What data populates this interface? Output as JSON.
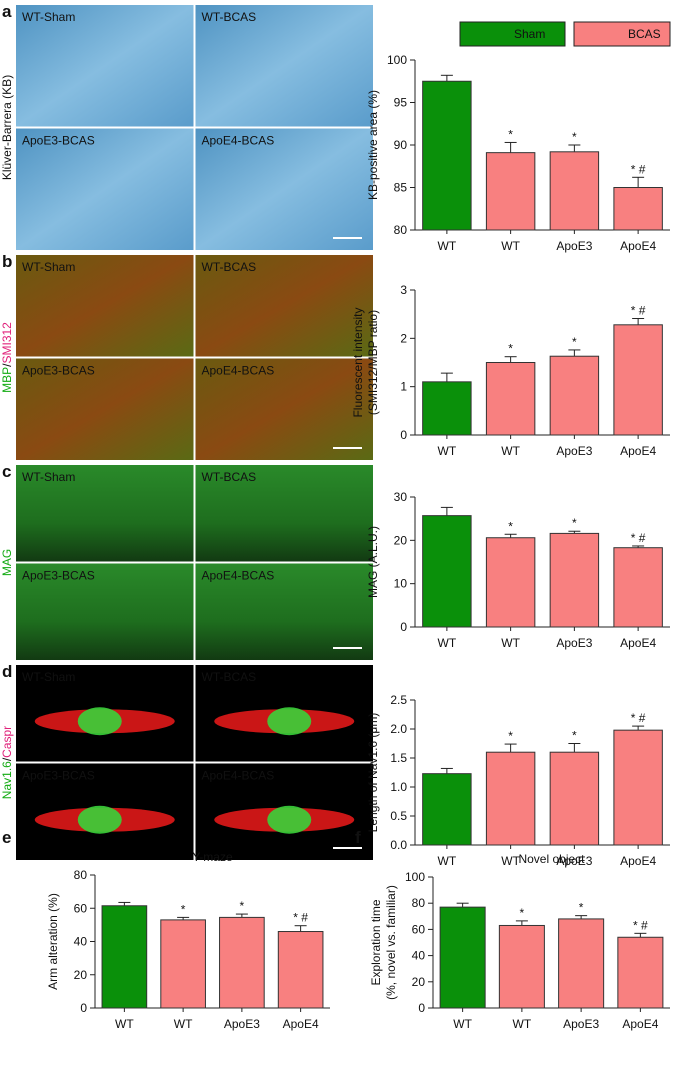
{
  "legend": [
    {
      "name": "Sham",
      "color": "#0a900a"
    },
    {
      "name": "BCAS",
      "color": "#f88080"
    }
  ],
  "panels": [
    {
      "label": "a",
      "stain": [
        "Klüver-Barrera (KB)"
      ],
      "stain_colors": [
        "#111111"
      ],
      "images": [
        "WT-Sham",
        "WT-BCAS",
        "ApoE3-BCAS",
        "ApoE4-BCAS"
      ]
    },
    {
      "label": "b",
      "stain": [
        "MBP",
        "/",
        "SMI312"
      ],
      "stain_colors": [
        "#11aa11",
        "#111111",
        "#e0207a"
      ],
      "images": [
        "WT-Sham",
        "WT-BCAS",
        "ApoE3-BCAS",
        "ApoE4-BCAS"
      ]
    },
    {
      "label": "c",
      "stain": [
        "MAG"
      ],
      "stain_colors": [
        "#11aa11"
      ],
      "images": [
        "WT-Sham",
        "WT-BCAS",
        "ApoE3-BCAS",
        "ApoE4-BCAS"
      ]
    },
    {
      "label": "d",
      "stain": [
        "Nav1.6",
        "/",
        "Caspr"
      ],
      "stain_colors": [
        "#11aa11",
        "#111111",
        "#e0207a"
      ],
      "images": [
        "WT-Sham",
        "WT-BCAS",
        "ApoE3-BCAS",
        "ApoE4-BCAS"
      ]
    }
  ],
  "chart_data": [
    {
      "type": "bar",
      "ylabel": "KB-positive area (%)",
      "categories": [
        "WT",
        "WT",
        "ApoE3",
        "ApoE4"
      ],
      "values": [
        97.5,
        89.1,
        89.2,
        85.0
      ],
      "errors": [
        0.7,
        1.2,
        0.8,
        1.2
      ],
      "colors": [
        "#0a900a",
        "#f88080",
        "#f88080",
        "#f88080"
      ],
      "annotations": [
        null,
        "*",
        "*",
        "* #"
      ],
      "ylim": [
        80,
        100
      ],
      "yticks": [
        80,
        85,
        90,
        95,
        100
      ]
    },
    {
      "type": "bar",
      "ylabel": [
        "Fluorescent intensity",
        "(SMI312/MBP ratio)"
      ],
      "categories": [
        "WT",
        "WT",
        "ApoE3",
        "ApoE4"
      ],
      "values": [
        1.1,
        1.5,
        1.63,
        2.28
      ],
      "errors": [
        0.18,
        0.12,
        0.13,
        0.13
      ],
      "colors": [
        "#0a900a",
        "#f88080",
        "#f88080",
        "#f88080"
      ],
      "annotations": [
        null,
        "*",
        "*",
        "* #"
      ],
      "ylim": [
        0,
        3
      ],
      "yticks": [
        0,
        1,
        2,
        3
      ]
    },
    {
      "type": "bar",
      "ylabel": "MAG (A.L.U.)",
      "categories": [
        "WT",
        "WT",
        "ApoE3",
        "ApoE4"
      ],
      "values": [
        25.7,
        20.6,
        21.6,
        18.3
      ],
      "errors": [
        1.9,
        0.8,
        0.5,
        0.4
      ],
      "colors": [
        "#0a900a",
        "#f88080",
        "#f88080",
        "#f88080"
      ],
      "annotations": [
        null,
        "*",
        "*",
        "* #"
      ],
      "ylim": [
        0,
        30
      ],
      "yticks": [
        0,
        10,
        20,
        30
      ]
    },
    {
      "type": "bar",
      "ylabel": "Length of Nav1.6 (μm)",
      "categories": [
        "WT",
        "WT",
        "ApoE3",
        "ApoE4"
      ],
      "values": [
        1.23,
        1.6,
        1.6,
        1.98
      ],
      "errors": [
        0.09,
        0.14,
        0.15,
        0.07
      ],
      "colors": [
        "#0a900a",
        "#f88080",
        "#f88080",
        "#f88080"
      ],
      "annotations": [
        null,
        "*",
        "*",
        "* #"
      ],
      "ylim": [
        0,
        2.5
      ],
      "yticks": [
        {
          "value": 0,
          "label": "0.0"
        },
        {
          "value": 0.5,
          "label": "0.5"
        },
        {
          "value": 1,
          "label": "1.0"
        },
        {
          "value": 1.5,
          "label": "1.5"
        },
        {
          "value": 2,
          "label": "2.0"
        },
        {
          "value": 2.5,
          "label": "2.5"
        }
      ]
    },
    {
      "type": "bar",
      "label": "e",
      "title": "Y-maze",
      "ylabel": "Arm alteration (%)",
      "categories": [
        "WT",
        "WT",
        "ApoE3",
        "ApoE4"
      ],
      "values": [
        61.5,
        53,
        54.5,
        46
      ],
      "errors": [
        2,
        1.5,
        2,
        3.5
      ],
      "colors": [
        "#0a900a",
        "#f88080",
        "#f88080",
        "#f88080"
      ],
      "annotations": [
        null,
        "*",
        "*",
        "* #"
      ],
      "ylim": [
        0,
        80
      ],
      "yticks": [
        0,
        20,
        40,
        60,
        80
      ]
    },
    {
      "type": "bar",
      "label": "f",
      "title": "Novel object",
      "ylabel": [
        "Exploration time",
        "(%, novel vs. familiar)"
      ],
      "categories": [
        "WT",
        "WT",
        "ApoE3",
        "ApoE4"
      ],
      "values": [
        77,
        63,
        68,
        54
      ],
      "errors": [
        3,
        3.5,
        2.5,
        3
      ],
      "colors": [
        "#0a900a",
        "#f88080",
        "#f88080",
        "#f88080"
      ],
      "annotations": [
        null,
        "*",
        "*",
        "* #"
      ],
      "ylim": [
        0,
        100
      ],
      "yticks": [
        0,
        20,
        40,
        60,
        80,
        100
      ]
    }
  ]
}
